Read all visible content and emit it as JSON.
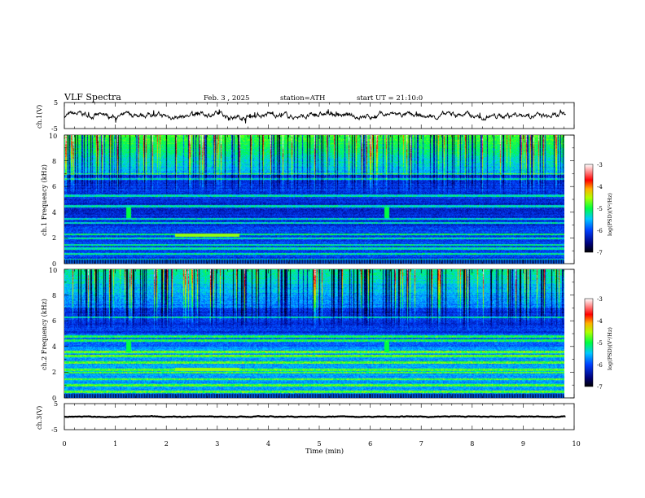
{
  "header": {
    "title": "VLF Spectra",
    "date": "Feb. 3 , 2025",
    "station": "station=ATH",
    "start": "start UT = 21:10:0"
  },
  "chart_data": [
    {
      "type": "line",
      "panel": "ch1-waveform",
      "ylabel": "ch.1(V)",
      "ylim": [
        -5,
        5
      ],
      "yticks": [
        "5",
        "-5"
      ],
      "x_range": [
        0,
        9.83
      ],
      "description_level_volts": 0.0,
      "series": [
        {
          "values_approx_range": [
            -1.5,
            1.5
          ]
        }
      ]
    },
    {
      "type": "heatmap",
      "panel": "ch1-spectrogram",
      "ylabel": "ch.1 Frequency (kHz)",
      "ylim": [
        0,
        10
      ],
      "yticks": [
        "0",
        "2",
        "4",
        "6",
        "8",
        "10"
      ],
      "x_range": [
        0,
        9.83
      ],
      "colorbar": {
        "label": "log(PSD)(V²/Hz)",
        "range": [
          -7,
          -3
        ],
        "ticks": [
          "-3",
          "-4",
          "-5",
          "-6",
          "-7"
        ]
      },
      "bands_khz": [
        0.3,
        0.8,
        1.2,
        1.5,
        2.0,
        2.3,
        3.2,
        3.5,
        4.5,
        5.3,
        6.6,
        7.0
      ],
      "transient_events_min": [
        1.25,
        6.33
      ]
    },
    {
      "type": "heatmap",
      "panel": "ch2-spectrogram",
      "ylabel": "ch.2 Frequency (kHz)",
      "ylim": [
        0,
        10
      ],
      "yticks": [
        "0",
        "2",
        "4",
        "6",
        "8",
        "10"
      ],
      "x_range": [
        0,
        9.83
      ],
      "colorbar": {
        "label": "log(PSD)(V²/Hz)",
        "range": [
          -7,
          -3
        ],
        "ticks": [
          "-3",
          "-4",
          "-5",
          "-6",
          "-7"
        ]
      },
      "bands_khz": [
        0.5,
        1.0,
        1.5,
        2.0,
        2.2,
        2.8,
        3.3,
        3.6,
        4.5,
        4.8,
        6.3
      ],
      "transient_events_min": [
        1.25,
        6.33
      ]
    },
    {
      "type": "line",
      "panel": "ch3-waveform",
      "ylabel": "ch.3(V)",
      "ylim": [
        -5,
        5
      ],
      "yticks": [
        "5",
        "-5"
      ],
      "x_range": [
        0,
        9.83
      ],
      "series": [
        {
          "values_approx_range": [
            -0.3,
            0.3
          ]
        }
      ]
    }
  ],
  "xaxis": {
    "label": "Time (min)",
    "xlim": [
      0,
      10
    ],
    "ticks": [
      "0",
      "1",
      "2",
      "3",
      "4",
      "5",
      "6",
      "7",
      "8",
      "9",
      "10"
    ]
  }
}
